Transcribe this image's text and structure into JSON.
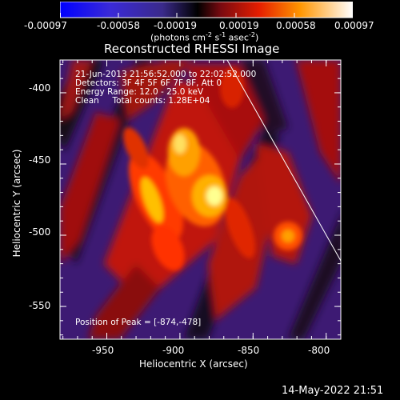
{
  "colorbar": {
    "ticks": [
      "-0.00097",
      "-0.00058",
      "-0.00019",
      "0.00019",
      "0.00058",
      "0.00097"
    ],
    "units_prefix": "(photons cm",
    "units_exp1": "-2",
    "units_mid1": " s",
    "units_exp2": "-1",
    "units_mid2": " asec",
    "units_exp3": "-2",
    "units_suffix": ")"
  },
  "plot": {
    "title": "Reconstructed RHESSI Image",
    "info_lines": [
      "21-Jun-2013 21:56:52.000 to 22:02:52.000",
      "Detectors: 3F 4F 5F 6F 7F 8F, Att 0",
      "Energy Range: 12.0 - 25.0 keV",
      "Clean     Total counts: 1.28E+04"
    ],
    "peak_text": "Position of Peak = [-874,-478]",
    "xlabel": "Heliocentric X (arcsec)",
    "ylabel": "Heliocentric Y (arcsec)",
    "xticks": [
      "-950",
      "-900",
      "-850",
      "-800"
    ],
    "yticks": [
      "-400",
      "-450",
      "-500",
      "-550"
    ],
    "xticks_values": [
      -950,
      -900,
      -850,
      -800
    ],
    "yticks_values": [
      -400,
      -450,
      -500,
      -550
    ],
    "xlim": [
      -982,
      -790
    ],
    "ylim": [
      -573,
      -377
    ]
  },
  "footer": {
    "timestamp": "14-May-2022 21:51"
  },
  "colors": {
    "background": "#000000",
    "axis": "#ffffff",
    "colormap": [
      "#0000ff",
      "#4b14a8",
      "#3a0a5a",
      "#8a1010",
      "#ff3a00",
      "#ffa000",
      "#ffffa0"
    ]
  }
}
